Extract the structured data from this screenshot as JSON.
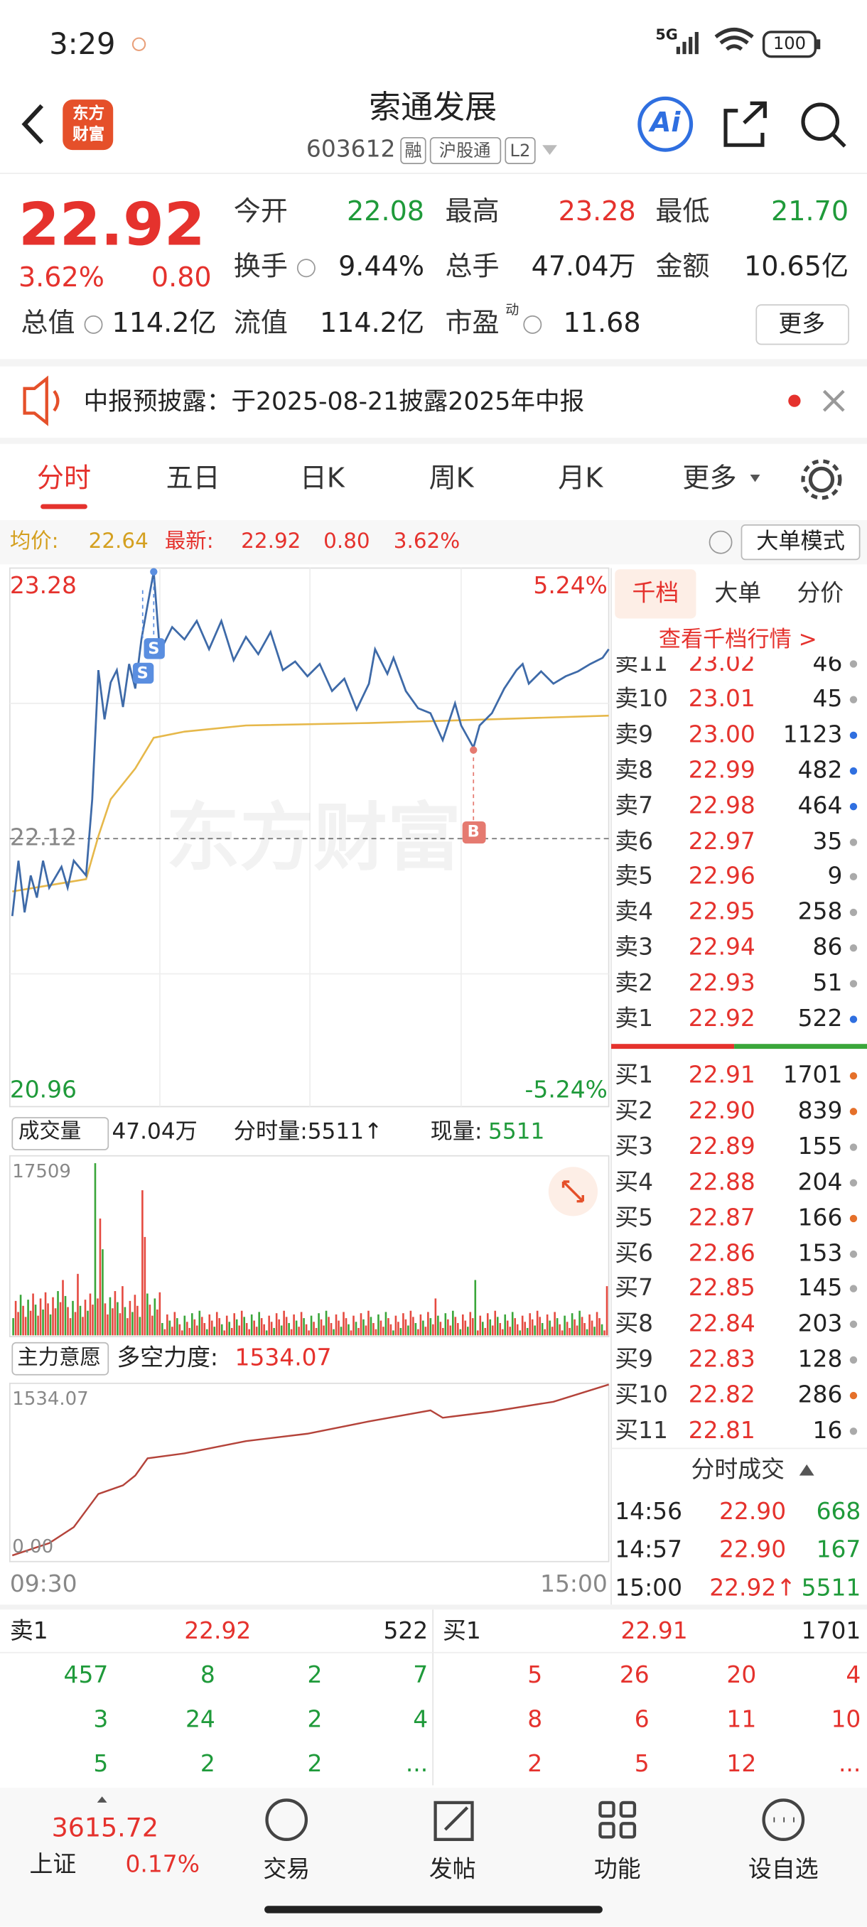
{
  "status_bar": {
    "time": "3:29",
    "network": "5G",
    "battery": "100"
  },
  "header": {
    "logo": [
      "东方",
      "财富"
    ],
    "title": "索通发展",
    "code": "603612",
    "tags": [
      "融",
      "沪股通",
      "L2"
    ],
    "ai": "Ai"
  },
  "quote": {
    "price": "22.92",
    "change_pct": "3.62%",
    "change": "0.80",
    "fields": [
      {
        "label": "今开",
        "value": "22.08"
      },
      {
        "label": "最高",
        "value": "23.28"
      },
      {
        "label": "最低",
        "value": "21.70"
      },
      {
        "label": "换手",
        "value": "9.44%"
      },
      {
        "label": "总手",
        "value": "47.04万"
      },
      {
        "label": "金额",
        "value": "10.65亿"
      },
      {
        "label": "总值",
        "value": "114.2亿"
      },
      {
        "label": "流值",
        "value": "114.2亿"
      },
      {
        "label": "市盈",
        "sup": "动",
        "value": "11.68"
      }
    ],
    "more": "更多"
  },
  "notice": "中报预披露：于2025-08-21披露2025年中报",
  "tabs": [
    "分时",
    "五日",
    "日K",
    "周K",
    "月K",
    "更多"
  ],
  "info": {
    "avg_label": "均价:",
    "avg": "22.64",
    "last_label": "最新:",
    "last": "22.92",
    "change": "0.80",
    "pct": "3.62%",
    "mode": "大单模式"
  },
  "chart": {
    "high": "23.28",
    "high_pct": "5.24%",
    "mid": "22.12",
    "low": "20.96",
    "low_pct": "-5.24%",
    "watermark": "东方财富",
    "markers": [
      "S",
      "S",
      "B"
    ]
  },
  "volume": {
    "label": "成交量",
    "total": "47.04万",
    "period": "分时量:5511↑",
    "current_label": "现量:",
    "current": "5511",
    "max": "17509"
  },
  "force": {
    "label": "主力意愿",
    "name": "多空力度:",
    "value": "1534.07",
    "max": "1534.07",
    "min": "0.00",
    "start": "09:30",
    "end": "15:00"
  },
  "depth": {
    "tabs": [
      "千档",
      "大单",
      "分价"
    ],
    "link": "查看千档行情 >",
    "asks": [
      {
        "label": "卖11",
        "price": "23.02",
        "volume": "46"
      },
      {
        "label": "卖10",
        "price": "23.01",
        "volume": "45"
      },
      {
        "label": "卖9",
        "price": "23.00",
        "volume": "1123"
      },
      {
        "label": "卖8",
        "price": "22.99",
        "volume": "482"
      },
      {
        "label": "卖7",
        "price": "22.98",
        "volume": "464"
      },
      {
        "label": "卖6",
        "price": "22.97",
        "volume": "35"
      },
      {
        "label": "卖5",
        "price": "22.96",
        "volume": "9"
      },
      {
        "label": "卖4",
        "price": "22.95",
        "volume": "258"
      },
      {
        "label": "卖3",
        "price": "22.94",
        "volume": "86"
      },
      {
        "label": "卖2",
        "price": "22.93",
        "volume": "51"
      },
      {
        "label": "卖1",
        "price": "22.92",
        "volume": "522"
      }
    ],
    "bids": [
      {
        "label": "买1",
        "price": "22.91",
        "volume": "1701"
      },
      {
        "label": "买2",
        "price": "22.90",
        "volume": "839"
      },
      {
        "label": "买3",
        "price": "22.89",
        "volume": "155"
      },
      {
        "label": "买4",
        "price": "22.88",
        "volume": "204"
      },
      {
        "label": "买5",
        "price": "22.87",
        "volume": "166"
      },
      {
        "label": "买6",
        "price": "22.86",
        "volume": "153"
      },
      {
        "label": "买7",
        "price": "22.85",
        "volume": "145"
      },
      {
        "label": "买8",
        "price": "22.84",
        "volume": "203"
      },
      {
        "label": "买9",
        "price": "22.83",
        "volume": "128"
      },
      {
        "label": "买10",
        "price": "22.82",
        "volume": "286"
      },
      {
        "label": "买11",
        "price": "22.81",
        "volume": "16"
      }
    ]
  },
  "trades": {
    "title": "分时成交",
    "rows": [
      {
        "time": "14:56",
        "price": "22.90",
        "volume": "668"
      },
      {
        "time": "14:57",
        "price": "22.90",
        "volume": "167"
      },
      {
        "time": "15:00",
        "price": "22.92↑",
        "volume": "5511"
      }
    ]
  },
  "l2": {
    "ask": {
      "label": "卖1",
      "price": "22.92",
      "volume": "522"
    },
    "bid": {
      "label": "买1",
      "price": "22.91",
      "volume": "1701"
    },
    "ask_queue": [
      [
        "457",
        "8",
        "2",
        "7"
      ],
      [
        "3",
        "24",
        "2",
        "4"
      ],
      [
        "5",
        "2",
        "2",
        "..."
      ]
    ],
    "bid_queue": [
      [
        "5",
        "26",
        "20",
        "4"
      ],
      [
        "8",
        "6",
        "11",
        "10"
      ],
      [
        "2",
        "5",
        "12",
        "..."
      ]
    ]
  },
  "nav": {
    "index_value": "3615.72",
    "index_name": "上证",
    "index_pct": "0.17%",
    "items": [
      "交易",
      "发帖",
      "功能",
      "设自选"
    ]
  }
}
